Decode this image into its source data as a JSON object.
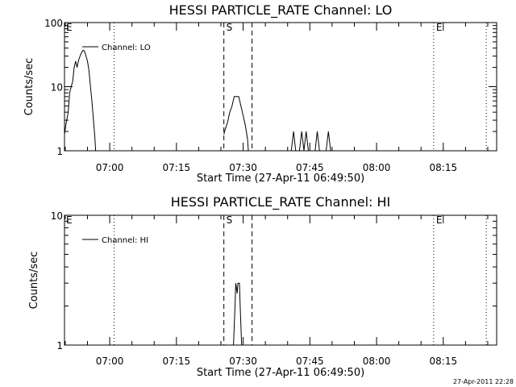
{
  "footer_timestamp": "27-Apr-2011 22:28",
  "chart_data": [
    {
      "type": "line",
      "title": "HESSI PARTICLE_RATE Channel: LO",
      "xlabel": "Start Time (27-Apr-11 06:49:50)",
      "ylabel": "Counts/sec",
      "y_scale": "log",
      "ylim": [
        1,
        100
      ],
      "y_ticks": [
        1,
        10,
        100
      ],
      "y_tick_labels": [
        "1",
        "10",
        "100"
      ],
      "xlim": [
        "06:49:50",
        "08:27:00"
      ],
      "x_tick_labels": [
        "07:00",
        "07:15",
        "07:30",
        "07:45",
        "08:00",
        "08:15"
      ],
      "x_ticks": [
        "07:00",
        "07:15",
        "07:30",
        "07:45",
        "08:00",
        "08:15"
      ],
      "legend": {
        "position": "top-left",
        "entries": [
          "Channel: LO"
        ]
      },
      "series": [
        {
          "name": "Channel: LO",
          "points": [
            [
              "06:49:50",
              1.8
            ],
            [
              "06:50:10",
              2.6
            ],
            [
              "06:50:40",
              4.0
            ],
            [
              "06:51:00",
              8.0
            ],
            [
              "06:51:20",
              10.0
            ],
            [
              "06:51:40",
              12.0
            ],
            [
              "06:52:00",
              20.0
            ],
            [
              "06:52:20",
              25.0
            ],
            [
              "06:52:40",
              20.0
            ],
            [
              "06:53:00",
              26.0
            ],
            [
              "06:53:20",
              30.0
            ],
            [
              "06:53:40",
              34.0
            ],
            [
              "06:54:00",
              37.0
            ],
            [
              "06:54:20",
              36.0
            ],
            [
              "06:54:40",
              30.0
            ],
            [
              "06:55:00",
              25.0
            ],
            [
              "06:55:20",
              18.0
            ],
            [
              "06:55:40",
              10.0
            ],
            [
              "06:56:00",
              6.0
            ],
            [
              "06:56:20",
              3.0
            ],
            [
              "06:56:40",
              1.6
            ],
            [
              "06:56:50",
              1.0
            ]
          ],
          "segments": [
            [
              [
                "07:25:40",
                1.8
              ],
              [
                "07:26:00",
                2.2
              ],
              [
                "07:26:30",
                2.8
              ],
              [
                "07:27:00",
                4.0
              ],
              [
                "07:27:30",
                5.0
              ],
              [
                "07:28:00",
                7.0
              ],
              [
                "07:28:30",
                7.0
              ],
              [
                "07:29:00",
                7.0
              ],
              [
                "07:29:30",
                5.0
              ],
              [
                "07:30:00",
                3.5
              ],
              [
                "07:30:30",
                2.5
              ],
              [
                "07:31:00",
                1.5
              ],
              [
                "07:31:10",
                1.0
              ]
            ],
            [
              [
                "07:40:50",
                1.0
              ],
              [
                "07:41:20",
                2.0
              ],
              [
                "07:41:50",
                1.0
              ]
            ],
            [
              [
                "07:42:40",
                1.0
              ],
              [
                "07:43:10",
                2.0
              ],
              [
                "07:43:40",
                1.0
              ],
              [
                "07:44:10",
                2.0
              ],
              [
                "07:44:40",
                1.0
              ]
            ],
            [
              [
                "07:46:10",
                1.0
              ],
              [
                "07:46:40",
                2.0
              ],
              [
                "07:47:10",
                1.0
              ]
            ],
            [
              [
                "07:48:40",
                1.0
              ],
              [
                "07:49:10",
                2.0
              ],
              [
                "07:49:40",
                1.0
              ]
            ]
          ]
        }
      ],
      "vlines": [
        {
          "time": "07:01:00",
          "style": "dotted",
          "label": ""
        },
        {
          "time": "07:25:40",
          "style": "dashed",
          "label": "S"
        },
        {
          "time": "07:32:00",
          "style": "dashed",
          "label": ""
        },
        {
          "time": "08:12:50",
          "style": "dotted",
          "label": "E"
        },
        {
          "time": "08:24:40",
          "style": "dotted",
          "label": ""
        }
      ],
      "left_marker": "E"
    },
    {
      "type": "line",
      "title": "HESSI PARTICLE_RATE Channel: HI",
      "xlabel": "Start Time (27-Apr-11 06:49:50)",
      "ylabel": "Counts/sec",
      "y_scale": "log",
      "ylim": [
        1,
        10
      ],
      "y_ticks": [
        1,
        10
      ],
      "y_tick_labels": [
        "1",
        "10"
      ],
      "xlim": [
        "06:49:50",
        "08:27:00"
      ],
      "x_tick_labels": [
        "07:00",
        "07:15",
        "07:30",
        "07:45",
        "08:00",
        "08:15"
      ],
      "x_ticks": [
        "07:00",
        "07:15",
        "07:30",
        "07:45",
        "08:00",
        "08:15"
      ],
      "legend": {
        "position": "top-left",
        "entries": [
          "Channel: HI"
        ]
      },
      "series": [
        {
          "name": "Channel: HI",
          "points": [],
          "segments": [
            [
              [
                "07:27:50",
                1.0
              ],
              [
                "07:28:10",
                2.0
              ],
              [
                "07:28:20",
                3.0
              ],
              [
                "07:28:40",
                2.5
              ],
              [
                "07:28:50",
                3.0
              ],
              [
                "07:29:10",
                3.0
              ],
              [
                "07:29:20",
                2.0
              ],
              [
                "07:29:40",
                1.0
              ]
            ]
          ]
        }
      ],
      "vlines": [
        {
          "time": "07:01:00",
          "style": "dotted",
          "label": ""
        },
        {
          "time": "07:25:40",
          "style": "dashed",
          "label": "S"
        },
        {
          "time": "07:32:00",
          "style": "dashed",
          "label": ""
        },
        {
          "time": "08:12:50",
          "style": "dotted",
          "label": "E"
        },
        {
          "time": "08:24:40",
          "style": "dotted",
          "label": ""
        }
      ],
      "left_marker": "E"
    }
  ]
}
